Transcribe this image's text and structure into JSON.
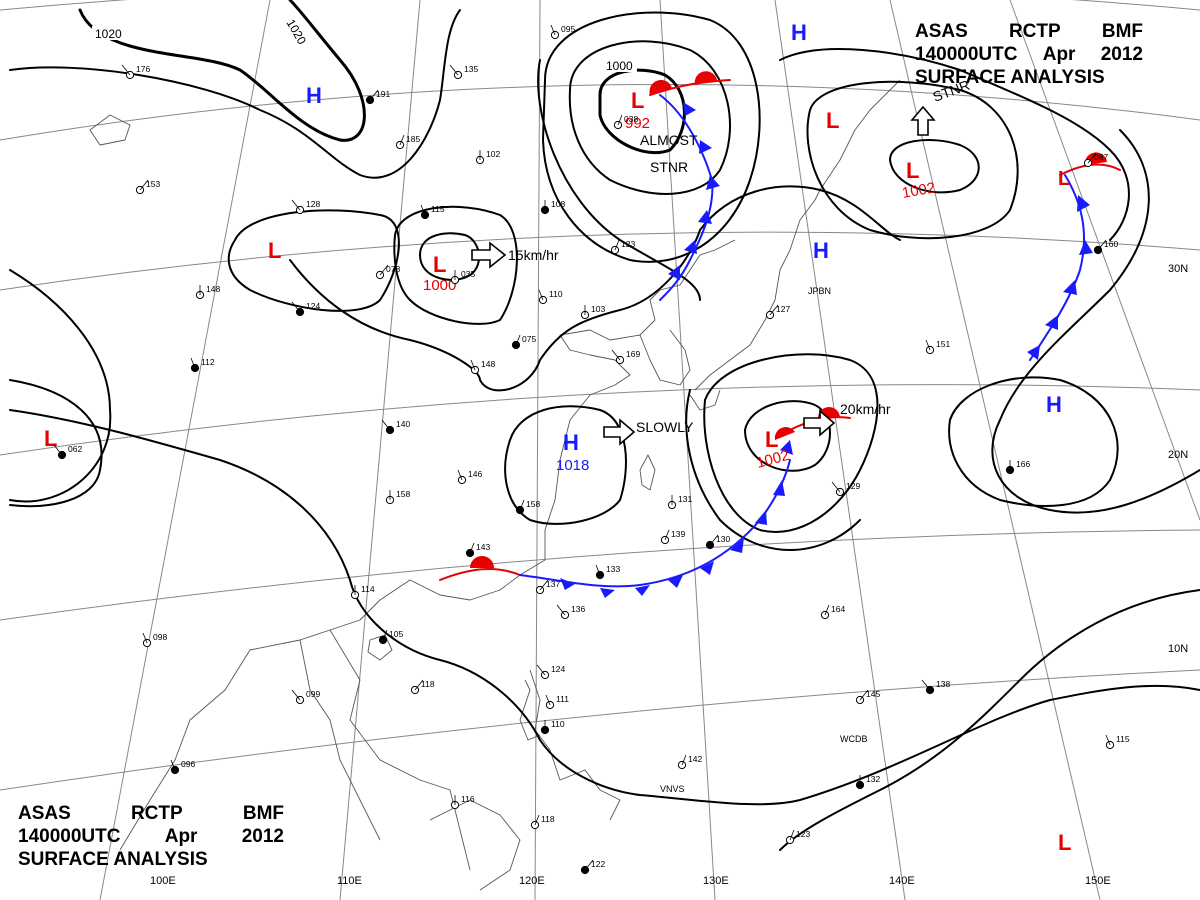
{
  "header": {
    "line1": [
      "ASAS",
      "RCTP",
      "BMF"
    ],
    "line2": [
      "140000UTC",
      "Apr",
      "2012"
    ],
    "line3": "SURFACE ANALYSIS"
  },
  "colors": {
    "low": "#e60000",
    "high": "#1a1aff",
    "isobar": "#000000",
    "coast": "#555555",
    "grid": "#888888",
    "warm_front": "#e60000",
    "cold_front": "#1a1aff"
  },
  "grid_labels": {
    "lon": [
      "100E",
      "110E",
      "120E",
      "130E",
      "140E",
      "150E"
    ],
    "lat": [
      "30N",
      "20N",
      "10N"
    ]
  },
  "isobar_labels": [
    "1020",
    "1020",
    "1000"
  ],
  "systems": [
    {
      "type": "L",
      "pressure": "1000"
    },
    {
      "type": "L",
      "pressure": "992"
    },
    {
      "type": "L",
      "pressure": "1002"
    },
    {
      "type": "L",
      "pressure": "1002"
    },
    {
      "type": "H",
      "pressure": "1018"
    },
    {
      "type": "L",
      "pressure": ""
    },
    {
      "type": "L",
      "pressure": ""
    },
    {
      "type": "L",
      "pressure": ""
    },
    {
      "type": "L",
      "pressure": ""
    },
    {
      "type": "H",
      "pressure": ""
    },
    {
      "type": "H",
      "pressure": ""
    },
    {
      "type": "H",
      "pressure": ""
    },
    {
      "type": "H",
      "pressure": ""
    },
    {
      "type": "L",
      "pressure": ""
    }
  ],
  "motion_labels": [
    "15km/hr",
    "20km/hr",
    "SLOWLY",
    "ALMOST",
    "STNR",
    "STNR"
  ],
  "station_tags": [
    "JPBN",
    "WCDB",
    "VNVS"
  ],
  "obs": [
    "124",
    "110",
    "103",
    "075",
    "078",
    "128",
    "115",
    "102",
    "185",
    "191",
    "135",
    "095",
    "108",
    "123",
    "127",
    "140",
    "146",
    "158",
    "143",
    "137",
    "136",
    "133",
    "131",
    "139",
    "130",
    "129",
    "151",
    "166",
    "164",
    "145",
    "138",
    "115",
    "114",
    "105",
    "118",
    "099",
    "096",
    "116",
    "118",
    "122",
    "124",
    "111",
    "132",
    "142",
    "087",
    "062",
    "098",
    "148",
    "158",
    "153",
    "176",
    "112",
    "035",
    "038",
    "160",
    "169",
    "148",
    "110",
    "123"
  ]
}
